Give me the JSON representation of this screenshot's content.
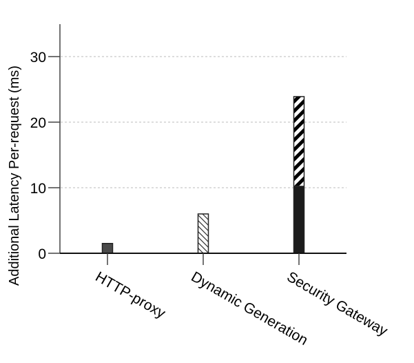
{
  "chart_data": {
    "type": "bar",
    "title": "",
    "xlabel": "",
    "ylabel": "Additional Latency Per-request (ms)",
    "ylim": [
      0,
      35
    ],
    "yticks": [
      0,
      10,
      20,
      30
    ],
    "grid": {
      "y": true,
      "style": "dashed",
      "color": "#bbbbbb"
    },
    "legend": null,
    "categories": [
      "HTTP-proxy",
      "Dynamic Generation",
      "Security Gateway"
    ],
    "bars": [
      {
        "category": "HTTP-proxy",
        "segments": [
          {
            "value": 1.5,
            "fill": "solid-gray",
            "color": "#4a4a4a"
          }
        ],
        "total": 1.5
      },
      {
        "category": "Dynamic Generation",
        "segments": [
          {
            "value": 6.0,
            "fill": "thin-diagonal-hatch",
            "color": "#ffffff"
          }
        ],
        "total": 6.0
      },
      {
        "category": "Security Gateway",
        "segments": [
          {
            "value": 10.3,
            "fill": "solid-black",
            "color": "#1c1c1c"
          },
          {
            "value": 13.6,
            "fill": "bold-diagonal-stripe",
            "color": "#000000"
          }
        ],
        "total": 23.9
      }
    ]
  }
}
